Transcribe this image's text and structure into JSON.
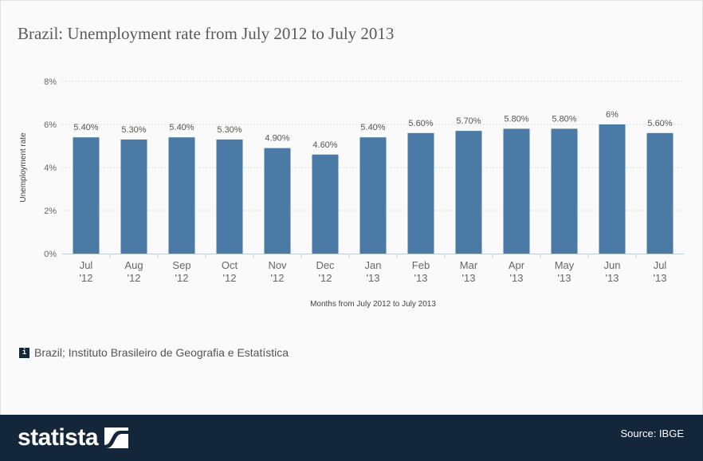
{
  "title": "Brazil: Unemployment rate from July 2012 to July 2013",
  "chart_data": {
    "type": "bar",
    "categories": [
      "Jul '12",
      "Aug '12",
      "Sep '12",
      "Oct '12",
      "Nov '12",
      "Dec '12",
      "Jan '13",
      "Feb '13",
      "Mar '13",
      "Apr '13",
      "May '13",
      "Jun '13",
      "Jul '13"
    ],
    "category_lines": [
      [
        "Jul",
        "'12"
      ],
      [
        "Aug",
        "'12"
      ],
      [
        "Sep",
        "'12"
      ],
      [
        "Oct",
        "'12"
      ],
      [
        "Nov",
        "'12"
      ],
      [
        "Dec",
        "'12"
      ],
      [
        "Jan",
        "'13"
      ],
      [
        "Feb",
        "'13"
      ],
      [
        "Mar",
        "'13"
      ],
      [
        "Apr",
        "'13"
      ],
      [
        "May",
        "'13"
      ],
      [
        "Jun",
        "'13"
      ],
      [
        "Jul",
        "'13"
      ]
    ],
    "values": [
      5.4,
      5.3,
      5.4,
      5.3,
      4.9,
      4.6,
      5.4,
      5.6,
      5.7,
      5.8,
      5.8,
      6.0,
      5.6
    ],
    "data_labels": [
      "5.40%",
      "5.30%",
      "5.40%",
      "5.30%",
      "4.90%",
      "4.60%",
      "5.40%",
      "5.60%",
      "5.70%",
      "5.80%",
      "5.80%",
      "6%",
      "5.60%"
    ],
    "xlabel": "Months from July 2012 to July 2013",
    "ylabel": "Unemployment rate",
    "ylim": [
      0,
      8
    ],
    "yticks": [
      0,
      2,
      4,
      6,
      8
    ],
    "ytick_labels": [
      "0%",
      "2%",
      "4%",
      "6%",
      "8%"
    ],
    "grid": true,
    "bar_color": "#4a7aa5"
  },
  "source_note": "Brazil; Instituto Brasileiro de Geografia e Estatística",
  "info_icon_label": "i",
  "footer": {
    "brand": "statista",
    "source": "Source: IBGE",
    "background": "#13263a"
  }
}
